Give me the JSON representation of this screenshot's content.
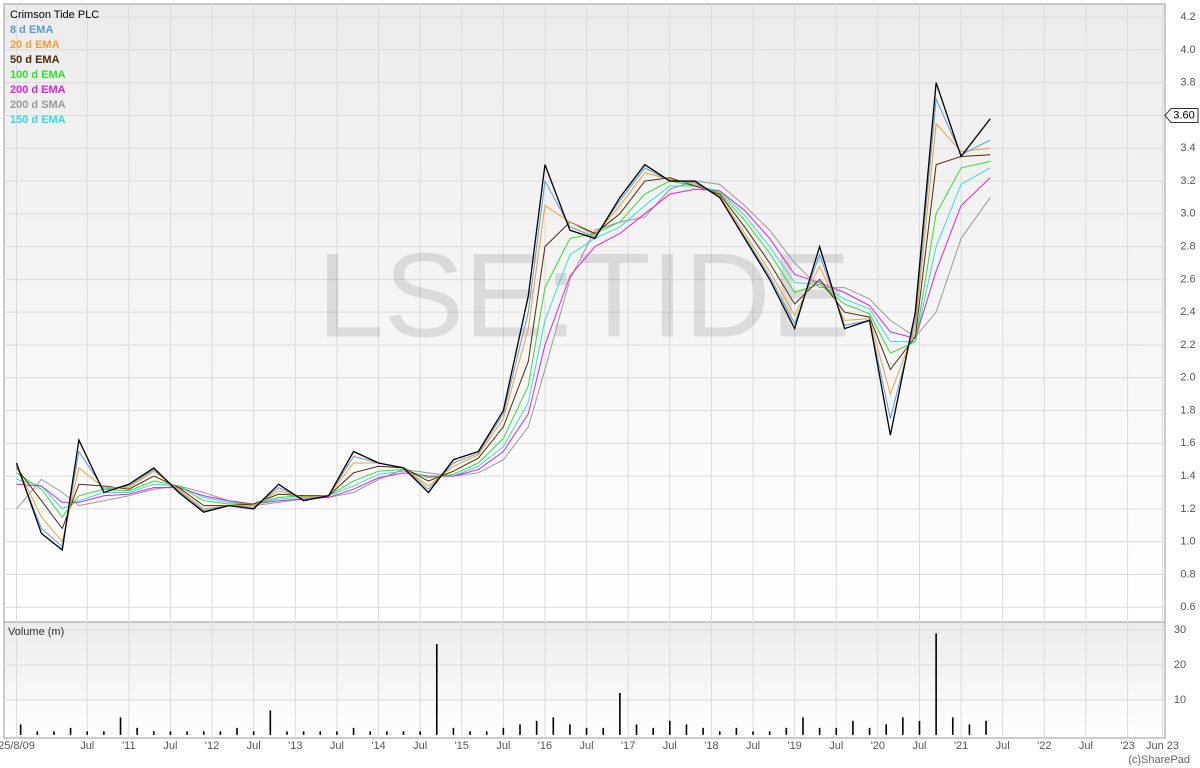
{
  "chart_data": [
    {
      "type": "line",
      "watermark": "LSE:TIDE",
      "x": [
        2009.65,
        2009.95,
        2010.2,
        2010.4,
        2010.7,
        2011.0,
        2011.3,
        2011.6,
        2011.9,
        2012.2,
        2012.5,
        2012.8,
        2013.1,
        2013.4,
        2013.7,
        2014.0,
        2014.3,
        2014.6,
        2014.9,
        2015.2,
        2015.5,
        2015.8,
        2016.0,
        2016.3,
        2016.6,
        2016.9,
        2017.2,
        2017.5,
        2017.8,
        2018.1,
        2018.4,
        2018.7,
        2019.0,
        2019.3,
        2019.6,
        2019.9,
        2020.15,
        2020.45,
        2020.7,
        2021.0,
        2021.35
      ],
      "series": [
        {
          "name": "Crimson Tide PLC",
          "color": "#000000",
          "values": [
            1.48,
            1.05,
            0.95,
            1.62,
            1.3,
            1.35,
            1.45,
            1.3,
            1.18,
            1.22,
            1.2,
            1.35,
            1.25,
            1.28,
            1.55,
            1.48,
            1.45,
            1.3,
            1.5,
            1.55,
            1.8,
            2.5,
            3.3,
            2.9,
            2.85,
            3.1,
            3.3,
            3.2,
            3.2,
            3.1,
            2.85,
            2.6,
            2.3,
            2.8,
            2.3,
            2.35,
            1.65,
            2.4,
            3.8,
            3.35,
            3.58
          ]
        },
        {
          "name": "8 d EMA",
          "color": "#5b9bd5",
          "values": [
            1.47,
            1.08,
            0.97,
            1.55,
            1.32,
            1.34,
            1.44,
            1.31,
            1.19,
            1.22,
            1.21,
            1.33,
            1.26,
            1.28,
            1.52,
            1.48,
            1.45,
            1.32,
            1.48,
            1.54,
            1.78,
            2.4,
            3.2,
            2.92,
            2.86,
            3.08,
            3.28,
            3.2,
            3.19,
            3.1,
            2.86,
            2.62,
            2.33,
            2.75,
            2.32,
            2.35,
            1.75,
            2.35,
            3.7,
            3.36,
            3.45
          ]
        },
        {
          "name": "20 d EMA",
          "color": "#f0a030",
          "values": [
            1.46,
            1.15,
            1.0,
            1.45,
            1.33,
            1.33,
            1.43,
            1.32,
            1.2,
            1.22,
            1.22,
            1.31,
            1.27,
            1.28,
            1.48,
            1.48,
            1.45,
            1.34,
            1.46,
            1.53,
            1.75,
            2.3,
            3.05,
            2.95,
            2.87,
            3.05,
            3.25,
            3.21,
            3.18,
            3.11,
            2.88,
            2.65,
            2.38,
            2.68,
            2.35,
            2.36,
            1.9,
            2.3,
            3.55,
            3.38,
            3.4
          ]
        },
        {
          "name": "50 d EMA",
          "color": "#4a2c10",
          "values": [
            1.45,
            1.25,
            1.08,
            1.35,
            1.34,
            1.32,
            1.4,
            1.33,
            1.22,
            1.22,
            1.23,
            1.29,
            1.28,
            1.28,
            1.42,
            1.46,
            1.45,
            1.37,
            1.43,
            1.51,
            1.7,
            2.1,
            2.8,
            2.95,
            2.88,
            3.0,
            3.2,
            3.22,
            3.17,
            3.12,
            2.92,
            2.7,
            2.45,
            2.6,
            2.4,
            2.37,
            2.05,
            2.25,
            3.3,
            3.35,
            3.36
          ]
        },
        {
          "name": "100 d EMA",
          "color": "#33dd33",
          "values": [
            1.42,
            1.32,
            1.15,
            1.28,
            1.32,
            1.31,
            1.37,
            1.34,
            1.25,
            1.23,
            1.23,
            1.27,
            1.28,
            1.28,
            1.37,
            1.43,
            1.44,
            1.39,
            1.41,
            1.48,
            1.63,
            1.95,
            2.55,
            2.85,
            2.88,
            2.95,
            3.12,
            3.2,
            3.17,
            3.13,
            2.96,
            2.76,
            2.52,
            2.57,
            2.45,
            2.39,
            2.15,
            2.22,
            3.0,
            3.28,
            3.32
          ]
        },
        {
          "name": "200 d EMA",
          "color": "#dd22dd",
          "values": [
            1.35,
            1.34,
            1.24,
            1.24,
            1.28,
            1.29,
            1.33,
            1.33,
            1.28,
            1.25,
            1.23,
            1.25,
            1.26,
            1.27,
            1.32,
            1.39,
            1.42,
            1.4,
            1.4,
            1.44,
            1.55,
            1.78,
            2.2,
            2.62,
            2.8,
            2.88,
            3.0,
            3.12,
            3.15,
            3.14,
            3.02,
            2.85,
            2.63,
            2.58,
            2.52,
            2.44,
            2.28,
            2.24,
            2.65,
            3.05,
            3.22
          ]
        },
        {
          "name": "200 d SMA",
          "color": "#999999",
          "values": [
            1.2,
            1.38,
            1.3,
            1.22,
            1.25,
            1.28,
            1.32,
            1.34,
            1.3,
            1.25,
            1.22,
            1.24,
            1.26,
            1.27,
            1.3,
            1.38,
            1.44,
            1.42,
            1.4,
            1.42,
            1.5,
            1.7,
            2.05,
            2.6,
            2.9,
            2.95,
            2.98,
            3.15,
            3.2,
            3.18,
            3.05,
            2.9,
            2.7,
            2.55,
            2.55,
            2.48,
            2.35,
            2.25,
            2.4,
            2.85,
            3.1
          ]
        },
        {
          "name": "150 d EMA",
          "color": "#33dddd",
          "values": [
            1.38,
            1.34,
            1.2,
            1.25,
            1.3,
            1.3,
            1.35,
            1.34,
            1.27,
            1.24,
            1.23,
            1.26,
            1.27,
            1.28,
            1.34,
            1.41,
            1.43,
            1.4,
            1.4,
            1.46,
            1.58,
            1.85,
            2.35,
            2.75,
            2.85,
            2.92,
            3.05,
            3.17,
            3.17,
            3.14,
            2.99,
            2.8,
            2.58,
            2.57,
            2.48,
            2.42,
            2.22,
            2.22,
            2.8,
            3.18,
            3.28
          ]
        }
      ],
      "last_price": {
        "value": 3.6,
        "label": "3.60"
      },
      "ylim": [
        0.51,
        4.28
      ],
      "yticks": [
        0.6,
        0.8,
        {
          "value": 1,
          "label": "1.0"
        },
        1.2,
        1.4,
        1.6,
        1.8,
        {
          "value": 2,
          "label": "2.0"
        },
        2.2,
        2.4,
        2.6,
        2.8,
        {
          "value": 3,
          "label": "3.0"
        },
        3.2,
        3.4,
        3.6,
        3.8,
        {
          "value": 4,
          "label": "4.0"
        },
        4.2
      ],
      "grid": true
    },
    {
      "type": "bar",
      "title": "Volume (m)",
      "color": "#000000",
      "x": [
        2009.7,
        2009.9,
        2010.1,
        2010.3,
        2010.5,
        2010.7,
        2010.9,
        2011.1,
        2011.3,
        2011.5,
        2011.7,
        2011.9,
        2012.1,
        2012.3,
        2012.5,
        2012.7,
        2012.9,
        2013.1,
        2013.3,
        2013.5,
        2013.7,
        2013.9,
        2014.1,
        2014.3,
        2014.5,
        2014.7,
        2014.9,
        2015.1,
        2015.3,
        2015.5,
        2015.7,
        2015.9,
        2016.1,
        2016.3,
        2016.5,
        2016.7,
        2016.9,
        2017.1,
        2017.3,
        2017.5,
        2017.7,
        2017.9,
        2018.1,
        2018.3,
        2018.5,
        2018.7,
        2018.9,
        2019.1,
        2019.3,
        2019.5,
        2019.7,
        2019.9,
        2020.1,
        2020.3,
        2020.5,
        2020.7,
        2020.9,
        2021.1,
        2021.3
      ],
      "values": [
        3,
        1,
        1,
        2,
        1,
        1,
        5,
        2,
        1,
        1,
        1,
        1,
        1,
        2,
        1,
        7,
        1,
        1,
        1,
        1,
        2,
        1,
        1,
        1,
        1,
        26,
        2,
        1,
        1,
        2,
        3,
        4,
        5,
        3,
        2,
        2,
        12,
        3,
        2,
        4,
        3,
        2,
        1,
        2,
        1,
        1,
        2,
        5,
        2,
        2,
        4,
        2,
        3,
        5,
        4,
        29,
        5,
        3,
        4
      ],
      "ylim": [
        -0.9,
        32.3
      ],
      "yticks": [
        10,
        20,
        30
      ],
      "xlim": [
        2009.5,
        2023.45
      ],
      "xticks": [
        {
          "value": 2009.65,
          "label": "25/8/09"
        },
        {
          "value": 2010.5,
          "label": "Jul"
        },
        {
          "value": 2011,
          "label": "'11"
        },
        {
          "value": 2011.5,
          "label": "Jul"
        },
        {
          "value": 2012,
          "label": "'12"
        },
        {
          "value": 2012.5,
          "label": "Jul"
        },
        {
          "value": 2013,
          "label": "'13"
        },
        {
          "value": 2013.5,
          "label": "Jul"
        },
        {
          "value": 2014,
          "label": "'14"
        },
        {
          "value": 2014.5,
          "label": "Jul"
        },
        {
          "value": 2015,
          "label": "'15"
        },
        {
          "value": 2015.5,
          "label": "Jul"
        },
        {
          "value": 2016,
          "label": "'16"
        },
        {
          "value": 2016.5,
          "label": "Jul"
        },
        {
          "value": 2017,
          "label": "'17"
        },
        {
          "value": 2017.5,
          "label": "Jul"
        },
        {
          "value": 2018,
          "label": "'18"
        },
        {
          "value": 2018.5,
          "label": "Jul"
        },
        {
          "value": 2019,
          "label": "'19"
        },
        {
          "value": 2019.5,
          "label": "Jul"
        },
        {
          "value": 2020,
          "label": "'20"
        },
        {
          "value": 2020.5,
          "label": "Jul"
        },
        {
          "value": 2021,
          "label": "'21"
        },
        {
          "value": 2021.5,
          "label": "Jul"
        },
        {
          "value": 2022,
          "label": "'22"
        },
        {
          "value": 2022.5,
          "label": "Jul"
        },
        {
          "value": 2023,
          "label": "'23"
        },
        {
          "value": 2023.42,
          "label": "Jun 23"
        }
      ],
      "grid": true
    }
  ],
  "footer": "(c)SharePad"
}
